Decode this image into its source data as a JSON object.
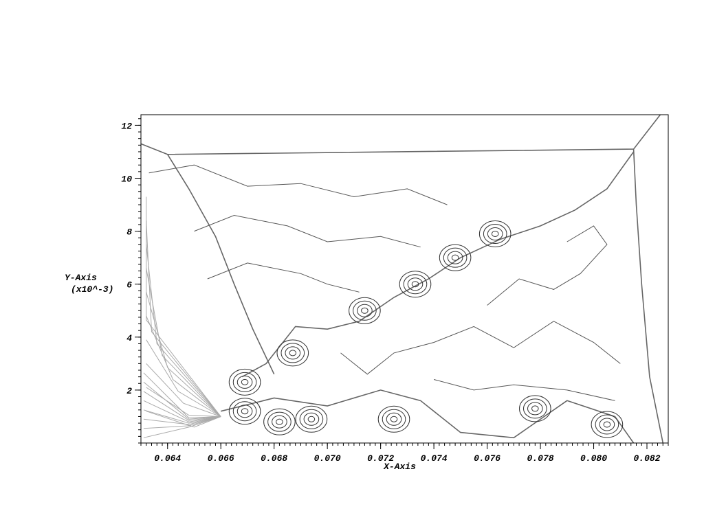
{
  "chart_data": {
    "type": "contour",
    "xlabel": "X-Axis",
    "ylabel": "Y-Axis",
    "ylabel_multiplier": "(x10^-3)",
    "xlim": [
      0.063,
      0.0828
    ],
    "ylim": [
      0,
      12.4
    ],
    "x_tick_values": [
      0.064,
      0.066,
      0.068,
      0.07,
      0.072,
      0.074,
      0.076,
      0.078,
      0.08,
      0.082
    ],
    "x_tick_labels": [
      "0.064",
      "0.066",
      "0.068",
      "0.070",
      "0.072",
      "0.074",
      "0.076",
      "0.078",
      "0.080",
      "0.082"
    ],
    "y_tick_values": [
      2,
      4,
      6,
      8,
      10,
      12
    ],
    "y_tick_labels": [
      "2",
      "4",
      "6",
      "8",
      "10",
      "12"
    ],
    "grid": false,
    "legend": "none",
    "colors": {
      "contour": "#555555",
      "contour_light": "#aaaaaa",
      "frame": "#000000"
    },
    "vortices": [
      {
        "x": 0.0669,
        "y": 2.3
      },
      {
        "x": 0.0669,
        "y": 1.2
      },
      {
        "x": 0.0682,
        "y": 0.8
      },
      {
        "x": 0.0687,
        "y": 3.4
      },
      {
        "x": 0.0694,
        "y": 0.9
      },
      {
        "x": 0.0714,
        "y": 5.0
      },
      {
        "x": 0.0725,
        "y": 0.9
      },
      {
        "x": 0.0733,
        "y": 6.0
      },
      {
        "x": 0.0748,
        "y": 7.0
      },
      {
        "x": 0.0763,
        "y": 7.9
      },
      {
        "x": 0.0778,
        "y": 1.3
      },
      {
        "x": 0.0805,
        "y": 0.7
      }
    ]
  }
}
